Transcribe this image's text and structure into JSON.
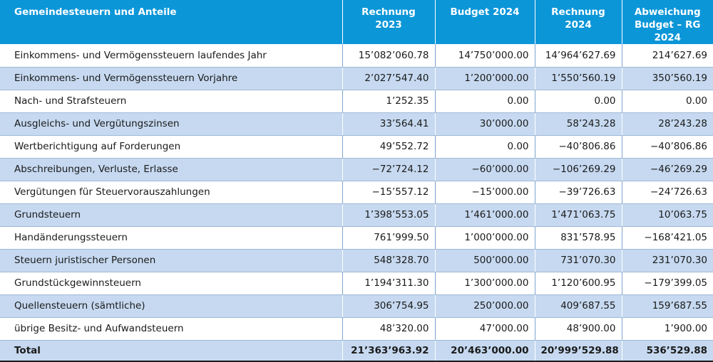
{
  "table": {
    "headers": [
      [
        "Gemeindesteuern und Anteile"
      ],
      [
        "Rechnung 2023"
      ],
      [
        "Budget 2024"
      ],
      [
        "Rechnung 2024"
      ],
      [
        "Abweichung",
        "Budget – RG 2024"
      ]
    ],
    "rows": [
      [
        "Einkommens- und Vermögenssteuern laufendes Jahr",
        "15’082’060.78",
        "14’750’000.00",
        "14’964’627.69",
        "214’627.69"
      ],
      [
        "Einkommens- und Vermögenssteuern Vorjahre",
        "2’027’547.40",
        "1’200’000.00",
        "1’550’560.19",
        "350’560.19"
      ],
      [
        "Nach- und Strafsteuern",
        "1’252.35",
        "0.00",
        "0.00",
        "0.00"
      ],
      [
        "Ausgleichs- und Vergütungszinsen",
        "33’564.41",
        "30’000.00",
        "58’243.28",
        "28’243.28"
      ],
      [
        "Wertberichtigung auf Forderungen",
        "49’552.72",
        "0.00",
        "−40’806.86",
        "−40’806.86"
      ],
      [
        "Abschreibungen, Verluste, Erlasse",
        "−72’724.12",
        "−60’000.00",
        "−106’269.29",
        "−46’269.29"
      ],
      [
        "Vergütungen für Steuervorauszahlungen",
        "−15’557.12",
        "−15’000.00",
        "−39’726.63",
        "−24’726.63"
      ],
      [
        "Grundsteuern",
        "1’398’553.05",
        "1’461’000.00",
        "1’471’063.75",
        "10’063.75"
      ],
      [
        "Handänderungssteuern",
        "761’999.50",
        "1’000’000.00",
        "831’578.95",
        "−168’421.05"
      ],
      [
        "Steuern juristischer Personen",
        "548’328.70",
        "500’000.00",
        "731’070.30",
        "231’070.30"
      ],
      [
        "Grundstückgewinnsteuern",
        "1’194’311.30",
        "1’300’000.00",
        "1’120’600.95",
        "−179’399.05"
      ],
      [
        "Quellensteuern (sämtliche)",
        "306’754.95",
        "250’000.00",
        "409’687.55",
        "159’687.55"
      ],
      [
        "übrige Besitz- und Aufwandsteuern",
        "48’320.00",
        "47’000.00",
        "48’900.00",
        "1’900.00"
      ]
    ],
    "total": [
      "Total",
      "21’363’963.92",
      "20’463’000.00",
      "20’999’529.88",
      "536’529.88"
    ]
  },
  "colors": {
    "header_bg": "#0b96d8",
    "band_bg": "#c6d9f0"
  }
}
